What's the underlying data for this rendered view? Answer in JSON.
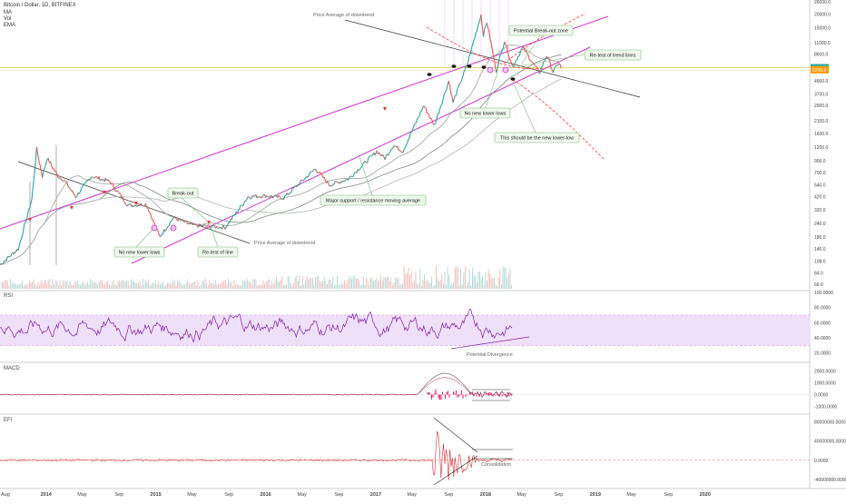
{
  "header": {
    "symbol": "Bitcoin / Dollar, 1D, BITFINEX",
    "indicators": [
      "MA",
      "Vol",
      "EMA"
    ]
  },
  "colors": {
    "price_bull": "#26a69a",
    "price_bear": "#ef5350",
    "trend_main": "#cc33cc",
    "ma_line": "#8f9a8f",
    "downtrend_line": "#333333",
    "red_dashed": "#ff3333",
    "horizontal_support": "#e6d78a",
    "rsi_line": "#7b1fa2",
    "rsi_band": "#efe0fa",
    "macd_hist": "#e91e63",
    "current_price_tag": "#26a69a",
    "prev_price_tag": "#ff9800"
  },
  "chart_data": [
    {
      "type": "line",
      "name": "price",
      "log_scale": true,
      "x_ticks": [
        "Aug",
        "2014",
        "May",
        "Sep",
        "2015",
        "May",
        "Sep",
        "2016",
        "May",
        "Sep",
        "2017",
        "May",
        "Sep",
        "2018",
        "May",
        "Sep",
        "2019",
        "May",
        "Sep",
        "2020"
      ],
      "y_ticks": [
        "26000.0",
        "20000.0",
        "15000.0",
        "11000.0",
        "8600.0",
        "6400.0",
        "4900.0",
        "3700.0",
        "2900.0",
        "2100.0",
        "1600.0",
        "1200.0",
        "900.0",
        "700.0",
        "540.0",
        "420.0",
        "320.0",
        "240.0",
        "180.0",
        "140.0",
        "108.0",
        "84.0",
        "66.0"
      ],
      "price_tags": [
        "6451.7",
        "6290.8"
      ],
      "series_points": [
        [
          "2013-08-01",
          100
        ],
        [
          "2013-10-01",
          140
        ],
        [
          "2013-11-15",
          400
        ],
        [
          "2013-12-01",
          1150
        ],
        [
          "2013-12-20",
          650
        ],
        [
          "2014-01-05",
          950
        ],
        [
          "2014-02-10",
          650
        ],
        [
          "2014-03-01",
          600
        ],
        [
          "2014-04-10",
          420
        ],
        [
          "2014-06-01",
          650
        ],
        [
          "2014-08-01",
          580
        ],
        [
          "2014-10-01",
          350
        ],
        [
          "2014-12-01",
          360
        ],
        [
          "2015-01-14",
          180
        ],
        [
          "2015-03-01",
          270
        ],
        [
          "2015-05-01",
          230
        ],
        [
          "2015-08-20",
          220
        ],
        [
          "2015-11-04",
          420
        ],
        [
          "2016-01-01",
          430
        ],
        [
          "2016-03-01",
          410
        ],
        [
          "2016-06-15",
          760
        ],
        [
          "2016-08-01",
          540
        ],
        [
          "2016-10-01",
          610
        ],
        [
          "2017-01-05",
          1100
        ],
        [
          "2017-02-01",
          950
        ],
        [
          "2017-03-01",
          1250
        ],
        [
          "2017-04-01",
          1100
        ],
        [
          "2017-06-10",
          2900
        ],
        [
          "2017-07-15",
          1900
        ],
        [
          "2017-09-01",
          4900
        ],
        [
          "2017-09-15",
          3100
        ],
        [
          "2017-11-01",
          6900
        ],
        [
          "2017-12-17",
          19800
        ],
        [
          "2017-12-25",
          13000
        ],
        [
          "2018-01-06",
          17000
        ],
        [
          "2018-02-06",
          6000
        ],
        [
          "2018-03-05",
          11500
        ],
        [
          "2018-04-01",
          6600
        ],
        [
          "2018-05-05",
          9900
        ],
        [
          "2018-06-29",
          5800
        ],
        [
          "2018-07-24",
          8400
        ],
        [
          "2018-08-14",
          5900
        ],
        [
          "2018-09-01",
          7200
        ],
        [
          "2018-09-10",
          6400
        ]
      ]
    },
    {
      "type": "line",
      "name": "RSI",
      "y_ticks": [
        "100.0000",
        "80.0000",
        "60.0000",
        "40.0000",
        "20.0000"
      ],
      "band": [
        30,
        70
      ]
    },
    {
      "type": "line",
      "name": "MACD",
      "y_ticks": [
        "2000.0000",
        "1000.0000",
        "0.0000",
        "-1000.0000"
      ]
    },
    {
      "type": "line",
      "name": "EFI",
      "y_ticks": [
        "80000000.0000",
        "40000000.0000",
        "0.0000",
        "-40000000.0000"
      ]
    }
  ],
  "panes": {
    "rsi_label": "RSI",
    "macd_label": "MACD",
    "efi_label": "EFI"
  },
  "annotations": {
    "price_avg_top": "Price Average of downtrend",
    "potential_breakout": "Potential Break-out zone",
    "retest_trend": "Re-test of trend lines",
    "no_new_lower_lows_2018": "No new lower lows",
    "new_lower_low": "This should be the new lower-low",
    "major_support": "Major support / resistance moving average",
    "breakout": "Break-out",
    "no_new_lower_lows_2015": "No new lower lows",
    "retest_line": "Re-test of line",
    "price_avg_bottom": "Price Average of downtrend",
    "potential_divergence": "Potential Divergence",
    "consolidation": "Consolidation"
  }
}
